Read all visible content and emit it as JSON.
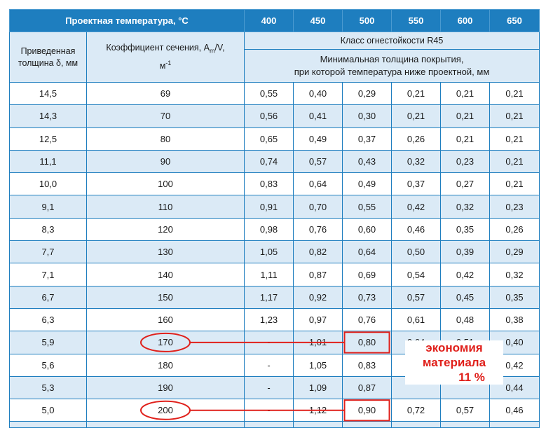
{
  "header": {
    "design_temp_label": "Проектная температура, °С",
    "temperatures": [
      "400",
      "450",
      "500",
      "550",
      "600",
      "650"
    ]
  },
  "subheader": {
    "reduced_thickness_label": "Приведенная толщина δ, мм",
    "coef_label_prefix": "Коэффициент сечения, A",
    "coef_label_sub": "m",
    "coef_label_mid": "/V,",
    "coef_label_unit": "м",
    "coef_label_sup": "-1",
    "fire_class_label": "Класс огнестойкости R45",
    "min_thickness_line1": "Минимальная толщина покрытия,",
    "min_thickness_line2": "при которой температура ниже проектной, мм"
  },
  "rows": [
    {
      "d": "14,5",
      "k": "69",
      "v": [
        "0,55",
        "0,40",
        "0,29",
        "0,21",
        "0,21",
        "0,21"
      ]
    },
    {
      "d": "14,3",
      "k": "70",
      "v": [
        "0,56",
        "0,41",
        "0,30",
        "0,21",
        "0,21",
        "0,21"
      ]
    },
    {
      "d": "12,5",
      "k": "80",
      "v": [
        "0,65",
        "0,49",
        "0,37",
        "0,26",
        "0,21",
        "0,21"
      ]
    },
    {
      "d": "11,1",
      "k": "90",
      "v": [
        "0,74",
        "0,57",
        "0,43",
        "0,32",
        "0,23",
        "0,21"
      ]
    },
    {
      "d": "10,0",
      "k": "100",
      "v": [
        "0,83",
        "0,64",
        "0,49",
        "0,37",
        "0,27",
        "0,21"
      ]
    },
    {
      "d": "9,1",
      "k": "110",
      "v": [
        "0,91",
        "0,70",
        "0,55",
        "0,42",
        "0,32",
        "0,23"
      ]
    },
    {
      "d": "8,3",
      "k": "120",
      "v": [
        "0,98",
        "0,76",
        "0,60",
        "0,46",
        "0,35",
        "0,26"
      ]
    },
    {
      "d": "7,7",
      "k": "130",
      "v": [
        "1,05",
        "0,82",
        "0,64",
        "0,50",
        "0,39",
        "0,29"
      ]
    },
    {
      "d": "7,1",
      "k": "140",
      "v": [
        "1,11",
        "0,87",
        "0,69",
        "0,54",
        "0,42",
        "0,32"
      ]
    },
    {
      "d": "6,7",
      "k": "150",
      "v": [
        "1,17",
        "0,92",
        "0,73",
        "0,57",
        "0,45",
        "0,35"
      ]
    },
    {
      "d": "6,3",
      "k": "160",
      "v": [
        "1,23",
        "0,97",
        "0,76",
        "0,61",
        "0,48",
        "0,38"
      ]
    },
    {
      "d": "5,9",
      "k": "170",
      "v": [
        "-",
        "1,01",
        "0,80",
        "0,64",
        "0,51",
        "0,40"
      ]
    },
    {
      "d": "5,6",
      "k": "180",
      "v": [
        "-",
        "1,05",
        "0,83",
        "",
        "",
        "0,42"
      ]
    },
    {
      "d": "5,3",
      "k": "190",
      "v": [
        "-",
        "1,09",
        "0,87",
        "",
        "",
        "0,44"
      ]
    },
    {
      "d": "5,0",
      "k": "200",
      "v": [
        "-",
        "1,12",
        "0,90",
        "0,72",
        "0,57",
        "0,46"
      ]
    }
  ],
  "annotation": {
    "line1": "экономия",
    "line2": "материала",
    "line3": "11 %",
    "color": "#e0201b"
  },
  "colors": {
    "header_bg": "#1e7ebf",
    "stripe_bg": "#dbeaf6"
  }
}
